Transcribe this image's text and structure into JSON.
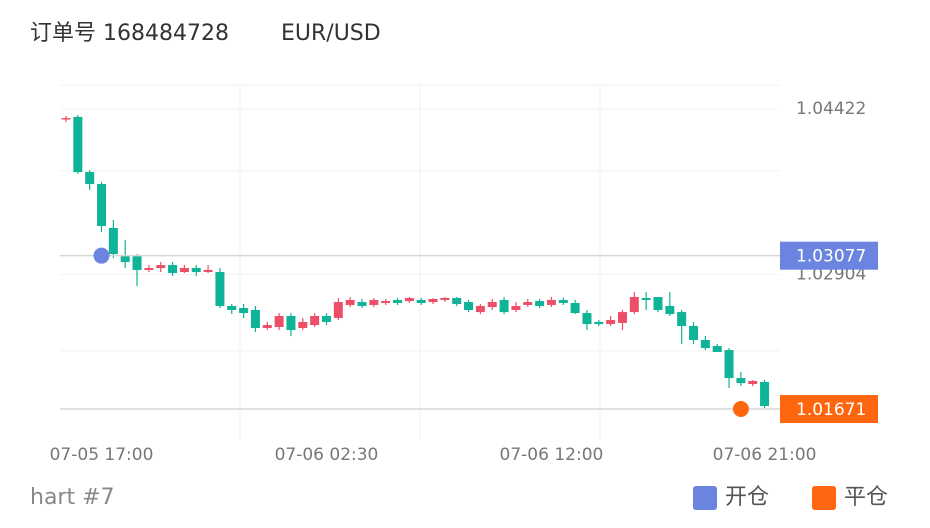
{
  "chart_data": {
    "type": "candlestick",
    "title": "订单号 168484728",
    "subtitle": "EUR/USD",
    "footer": "hart #7",
    "categories": [
      null,
      null,
      null,
      "07-05 17:00",
      null,
      null,
      null,
      null,
      null,
      null,
      null,
      null,
      null,
      null,
      null,
      null,
      null,
      null,
      null,
      null,
      null,
      null,
      "07-06 02:30",
      null,
      null,
      null,
      null,
      null,
      null,
      null,
      null,
      null,
      null,
      null,
      null,
      null,
      null,
      null,
      null,
      null,
      null,
      "07-06 12:00",
      null,
      null,
      null,
      null,
      null,
      null,
      null,
      null,
      null,
      null,
      null,
      null,
      null,
      null,
      null,
      null,
      null,
      "07-06 21:00"
    ],
    "open": [
      1.0433,
      1.04349,
      1.03844,
      1.03734,
      1.03331,
      1.03083,
      1.03083,
      1.02946,
      1.02964,
      1.02991,
      1.02927,
      1.02964,
      1.02927,
      1.02927,
      1.02616,
      1.02597,
      1.02579,
      1.02414,
      1.02423,
      1.02524,
      1.02414,
      1.02441,
      1.02524,
      1.02506,
      1.02625,
      1.02652,
      1.02625,
      1.02643,
      1.02671,
      1.02661,
      1.02671,
      1.02652,
      1.02671,
      1.02689,
      1.02652,
      1.0256,
      1.02606,
      1.02671,
      1.02579,
      1.02625,
      1.02661,
      1.02625,
      1.02671,
      1.02643,
      1.02551,
      1.02469,
      1.0245,
      1.0246,
      1.0256,
      1.02689,
      1.02698,
      1.02616,
      1.0256,
      1.02432,
      1.02304,
      1.02249,
      1.02212,
      1.01955,
      1.019,
      1.01919
    ],
    "high": [
      1.04358,
      1.04367,
      1.03863,
      1.03753,
      1.03404,
      1.03221,
      1.03092,
      1.02991,
      1.03019,
      1.03019,
      1.02991,
      1.02991,
      1.02991,
      1.02964,
      1.02634,
      1.02634,
      1.02616,
      1.02469,
      1.02551,
      1.02551,
      1.02506,
      1.02551,
      1.02551,
      1.02689,
      1.02698,
      1.0268,
      1.02689,
      1.0268,
      1.02689,
      1.02698,
      1.02689,
      1.02689,
      1.02698,
      1.02698,
      1.02671,
      1.02634,
      1.0268,
      1.02698,
      1.02652,
      1.0268,
      1.0268,
      1.02698,
      1.02689,
      1.02671,
      1.02579,
      1.02487,
      1.02524,
      1.02579,
      1.02744,
      1.02744,
      1.02698,
      1.02744,
      1.02579,
      1.02469,
      1.0234,
      1.02267,
      1.0223,
      1.0201,
      1.01937,
      1.01937
    ],
    "low": [
      1.04303,
      1.03826,
      1.03679,
      1.03294,
      1.03056,
      1.02964,
      1.02799,
      1.02927,
      1.02927,
      1.02891,
      1.02918,
      1.02891,
      1.02918,
      1.02597,
      1.02542,
      1.02506,
      1.02377,
      1.02395,
      1.02395,
      1.0234,
      1.02395,
      1.02423,
      1.02441,
      1.02487,
      1.02606,
      1.02597,
      1.02606,
      1.02625,
      1.02625,
      1.02643,
      1.02625,
      1.02634,
      1.02652,
      1.02616,
      1.0256,
      1.02542,
      1.02579,
      1.02542,
      1.0256,
      1.02606,
      1.02597,
      1.02606,
      1.02625,
      1.02542,
      1.02395,
      1.02432,
      1.02432,
      1.02395,
      1.02542,
      1.02579,
      1.0256,
      1.02524,
      1.02267,
      1.02267,
      1.02212,
      1.02194,
      1.01864,
      1.01882,
      1.01882,
      1.0168
    ],
    "close": [
      1.04339,
      1.03844,
      1.03734,
      1.03349,
      1.03092,
      1.03019,
      1.02946,
      1.02964,
      1.02991,
      1.02918,
      1.02964,
      1.02927,
      1.02946,
      1.02616,
      1.02579,
      1.02551,
      1.02414,
      1.02441,
      1.02524,
      1.02395,
      1.02469,
      1.02524,
      1.02469,
      1.02652,
      1.02671,
      1.02616,
      1.02671,
      1.02661,
      1.02643,
      1.02689,
      1.02643,
      1.0268,
      1.02689,
      1.02634,
      1.02579,
      1.02616,
      1.02652,
      1.0256,
      1.02616,
      1.02652,
      1.02616,
      1.02671,
      1.02643,
      1.02551,
      1.0245,
      1.0245,
      1.02487,
      1.0256,
      1.02698,
      1.02671,
      1.02579,
      1.02542,
      1.02432,
      1.02304,
      1.0223,
      1.02194,
      1.01955,
      1.01909,
      1.01928,
      1.01699
    ],
    "up_color": "#ec5069",
    "down_color": "#0fb397",
    "ylim": [
      1.01387,
      1.04642
    ],
    "yticks": [
      1.04422,
      1.02904
    ],
    "markers": [
      {
        "name": "开仓",
        "color": "#6a84e0",
        "index": 3,
        "value": 1.03077
      },
      {
        "name": "平仓",
        "color": "#ff6610",
        "index": 57,
        "value": 1.01671
      }
    ]
  }
}
